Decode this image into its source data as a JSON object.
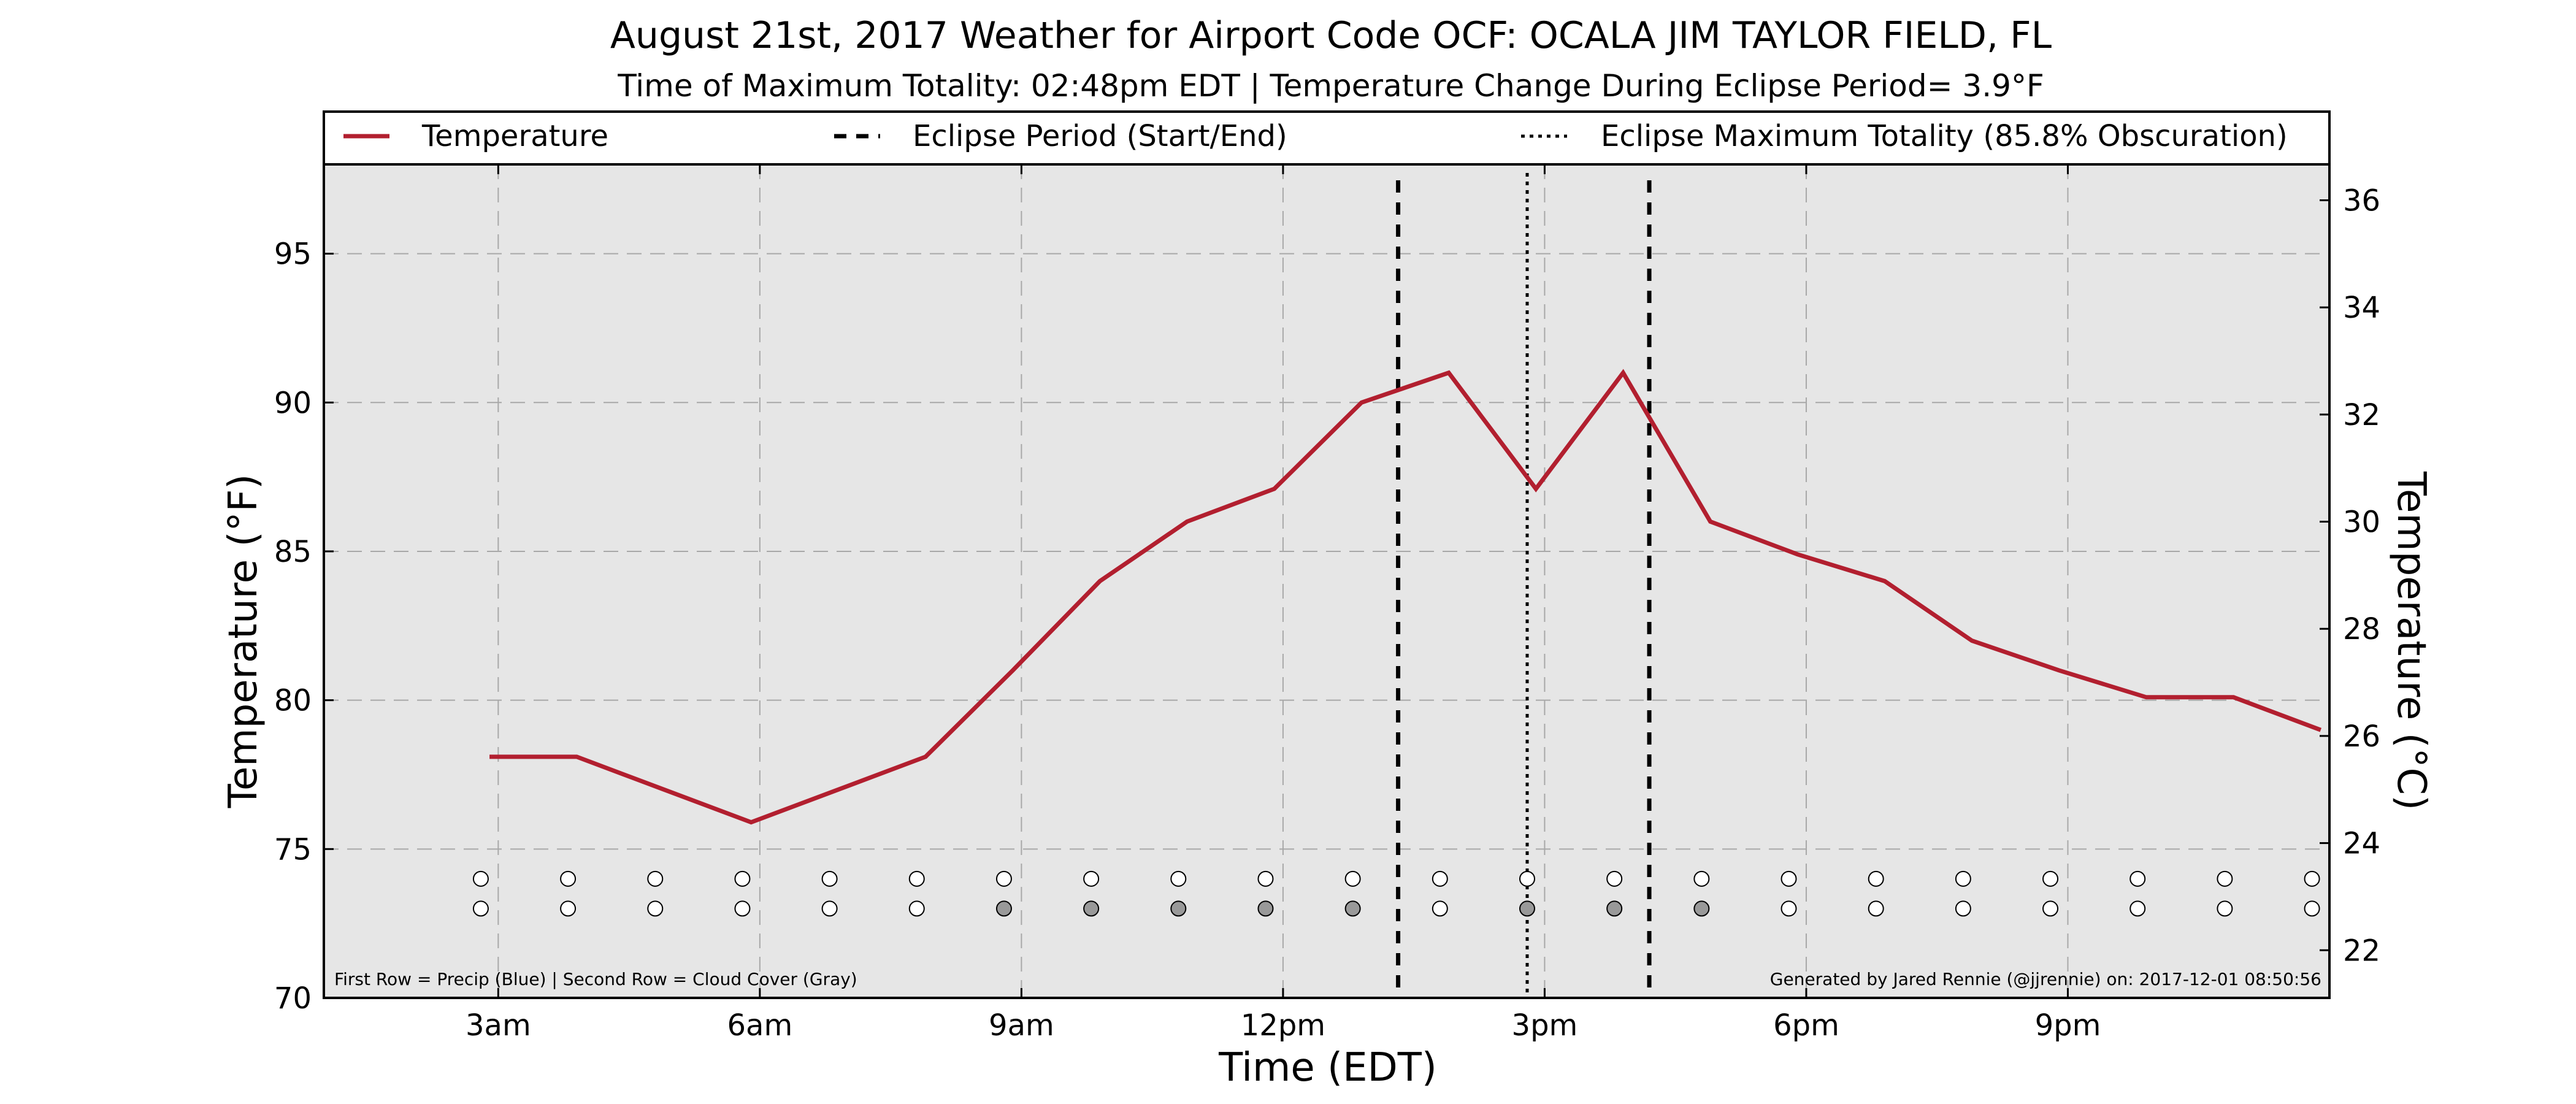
{
  "chart_data": {
    "type": "line",
    "title": "August 21st, 2017 Weather for Airport Code OCF: OCALA JIM TAYLOR FIELD, FL",
    "subtitle": "Time of Maximum Totality: 02:48pm EDT | Temperature Change During Eclipse Period= 3.9°F",
    "xlabel": "Time (EDT)",
    "ylabel": "Temperature (°F)",
    "ylabel_right": "Temperature (°C)",
    "xlim": [
      1.0,
      24.0
    ],
    "ylim": [
      70,
      98
    ],
    "ylim_right": [
      21.11,
      36.67
    ],
    "x_ticks": [
      {
        "value": 3,
        "label": "3am"
      },
      {
        "value": 6,
        "label": "6am"
      },
      {
        "value": 9,
        "label": "9am"
      },
      {
        "value": 12,
        "label": "12pm"
      },
      {
        "value": 15,
        "label": "3pm"
      },
      {
        "value": 18,
        "label": "6pm"
      },
      {
        "value": 21,
        "label": "9pm"
      }
    ],
    "y_ticks": [
      70,
      75,
      80,
      85,
      90,
      95
    ],
    "y_ticks_right": [
      22,
      24,
      26,
      28,
      30,
      32,
      34,
      36
    ],
    "grid": true,
    "legend_position": "top",
    "background": "#e6e6e6",
    "series": [
      {
        "name": "Temperature",
        "color": "#b21f2f",
        "x": [
          2.9,
          3.9,
          4.9,
          5.9,
          6.9,
          7.9,
          8.9,
          9.9,
          10.9,
          11.9,
          12.9,
          13.9,
          14.9,
          15.9,
          16.9,
          17.9,
          18.9,
          19.9,
          20.9,
          21.9,
          22.9,
          23.9
        ],
        "values": [
          78.1,
          78.1,
          77.0,
          75.9,
          77.0,
          78.1,
          81.0,
          84.0,
          86.0,
          87.1,
          90.0,
          91.0,
          87.1,
          91.0,
          86.0,
          84.9,
          84.0,
          82.0,
          81.0,
          80.1,
          80.1,
          79.0
        ]
      }
    ],
    "legend": [
      {
        "label": "Temperature",
        "style": "solid",
        "color": "#b21f2f"
      },
      {
        "label": "Eclipse Period (Start/End)",
        "style": "dashed",
        "color": "#000000"
      },
      {
        "label": "Eclipse Maximum Totality (85.8% Obscuration)",
        "style": "dotted",
        "color": "#000000"
      }
    ],
    "eclipse_period": {
      "start": 13.32,
      "end": 16.2
    },
    "max_totality": 14.8,
    "precip_row": {
      "y": 74,
      "x": [
        2.8,
        3.8,
        4.8,
        5.8,
        6.8,
        7.8,
        8.8,
        9.8,
        10.8,
        11.8,
        12.8,
        13.8,
        14.8,
        15.8,
        16.8,
        17.8,
        18.8,
        19.8,
        20.8,
        21.8,
        22.8,
        23.8
      ],
      "fills": [
        "#ffffff",
        "#ffffff",
        "#ffffff",
        "#ffffff",
        "#ffffff",
        "#ffffff",
        "#ffffff",
        "#ffffff",
        "#ffffff",
        "#ffffff",
        "#ffffff",
        "#ffffff",
        "#ffffff",
        "#ffffff",
        "#ffffff",
        "#ffffff",
        "#ffffff",
        "#ffffff",
        "#ffffff",
        "#ffffff",
        "#ffffff",
        "#ffffff"
      ]
    },
    "cloud_row": {
      "y": 73,
      "x": [
        2.8,
        3.8,
        4.8,
        5.8,
        6.8,
        7.8,
        8.8,
        9.8,
        10.8,
        11.8,
        12.8,
        13.8,
        14.8,
        15.8,
        16.8,
        17.8,
        18.8,
        19.8,
        20.8,
        21.8,
        22.8,
        23.8
      ],
      "fills": [
        "#ffffff",
        "#ffffff",
        "#ffffff",
        "#ffffff",
        "#ffffff",
        "#ffffff",
        "#999999",
        "#999999",
        "#999999",
        "#999999",
        "#999999",
        "#ffffff",
        "#999999",
        "#999999",
        "#999999",
        "#ffffff",
        "#ffffff",
        "#ffffff",
        "#ffffff",
        "#ffffff",
        "#ffffff",
        "#ffffff"
      ]
    },
    "notes": {
      "left": "First Row = Precip (Blue) | Second Row = Cloud Cover (Gray)",
      "right": "Generated by Jared Rennie (@jjrennie) on: 2017-12-01 08:50:56"
    }
  }
}
